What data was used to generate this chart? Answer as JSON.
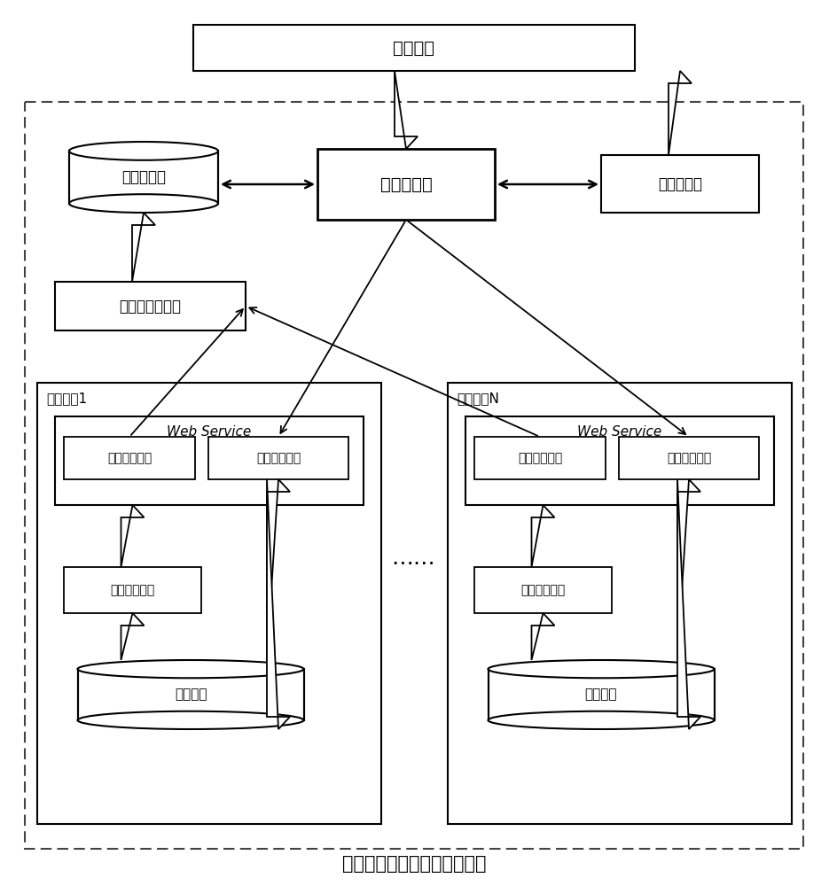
{
  "title": "查询请求",
  "subtitle": "虚拟化的数据集成和查询系统",
  "query_dispatcher": "查询分发器",
  "virtual_db": "虚拟数据库",
  "result_synthesizer": "结果合成器",
  "virtual_data_aggregator": "虚拟数据集成器",
  "app_system1": "应用系统1",
  "app_systemN": "应用系统N",
  "web_service": "Web Service",
  "virtual_data_interface": "虚拟数据接口",
  "entity_data_interface": "实体数据接口",
  "virtual_wrapper": "虚拟化封装器",
  "system_data": "系统数据",
  "ellipsis": "……",
  "bg_color": "#ffffff",
  "font_size_large": 14,
  "font_size_medium": 12,
  "font_size_small": 11,
  "font_size_subtitle": 15
}
